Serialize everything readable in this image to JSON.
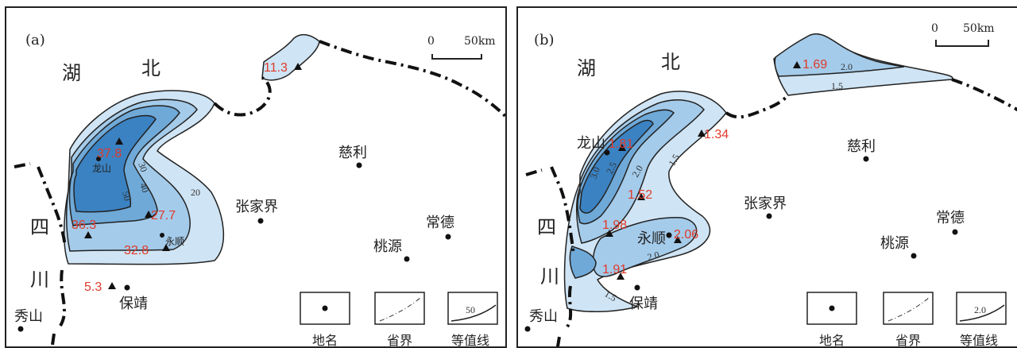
{
  "panels": [
    {
      "id": "a",
      "label": "(a)",
      "scale": {
        "zero": "0",
        "dist": "50km"
      },
      "provinces": {
        "hubei_1": "湖",
        "hubei_2": "北",
        "sichuan_1": "四",
        "sichuan_2": "川"
      },
      "places": {
        "cili": "慈利",
        "zhangjiajie": "张家界",
        "changde": "常德",
        "taoyuan": "桃源",
        "baojing": "保靖",
        "xiushan": "秀山",
        "longshan": "龙山",
        "yongshun": "永顺"
      },
      "values": [
        "11.3",
        "37.8",
        "36.3",
        "27.7",
        "32.8",
        "5.3"
      ],
      "isolines": [
        "50",
        "40",
        "30",
        "20"
      ],
      "legend": {
        "place": "地名",
        "border": "省界",
        "isoline": "等值线",
        "sample": "50"
      }
    },
    {
      "id": "b",
      "label": "(b)",
      "scale": {
        "zero": "0",
        "dist": "50km"
      },
      "provinces": {
        "hubei_1": "湖",
        "hubei_2": "北",
        "sichuan_1": "四",
        "sichuan_2": "川"
      },
      "places": {
        "cili": "慈利",
        "zhangjiajie": "张家界",
        "changde": "常德",
        "taoyuan": "桃源",
        "baojing": "保靖",
        "xiushan": "秀山",
        "longshan": "龙山",
        "yongshun": "永顺"
      },
      "values": [
        "1.69",
        "1.81",
        "1.34",
        "1.52",
        "1.98",
        "2.06",
        "1.91"
      ],
      "isolines": [
        "2.0",
        "1.5",
        "3.0",
        "2.5",
        "2.0",
        "1.5",
        "2.0",
        "1.5"
      ],
      "legend": {
        "place": "地名",
        "border": "省界",
        "isoline": "等值线",
        "sample": "2.0"
      }
    }
  ],
  "colors": {
    "level1": "#cfe4f4",
    "level2": "#a4cbea",
    "level3": "#6fa9d8",
    "level4": "#3b82c2",
    "value": "#e03a2a"
  }
}
